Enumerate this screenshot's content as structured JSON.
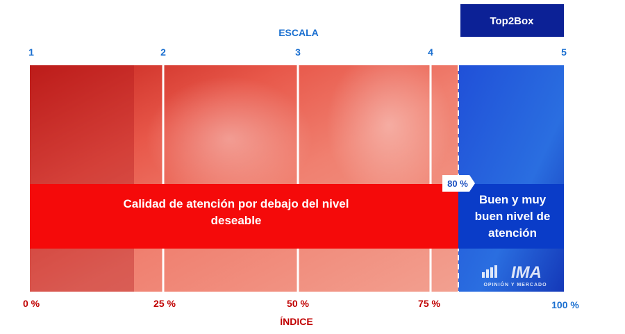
{
  "header": {
    "badge": "Top2Box",
    "scale_title": "ESCALA"
  },
  "scale": [
    "1",
    "2",
    "3",
    "4",
    "5"
  ],
  "index": [
    "0 %",
    "25 %",
    "50 %",
    "75 %",
    "100 %"
  ],
  "index_title": "ÍNDICE",
  "threshold": "80 %",
  "bands": {
    "below": "Calidad de atención por debajo del nivel deseable",
    "above": "Buen y muy buen nivel de atención"
  },
  "logo": {
    "mark": "IMA",
    "tagline": "OPINIÓN Y MERCADO"
  }
}
